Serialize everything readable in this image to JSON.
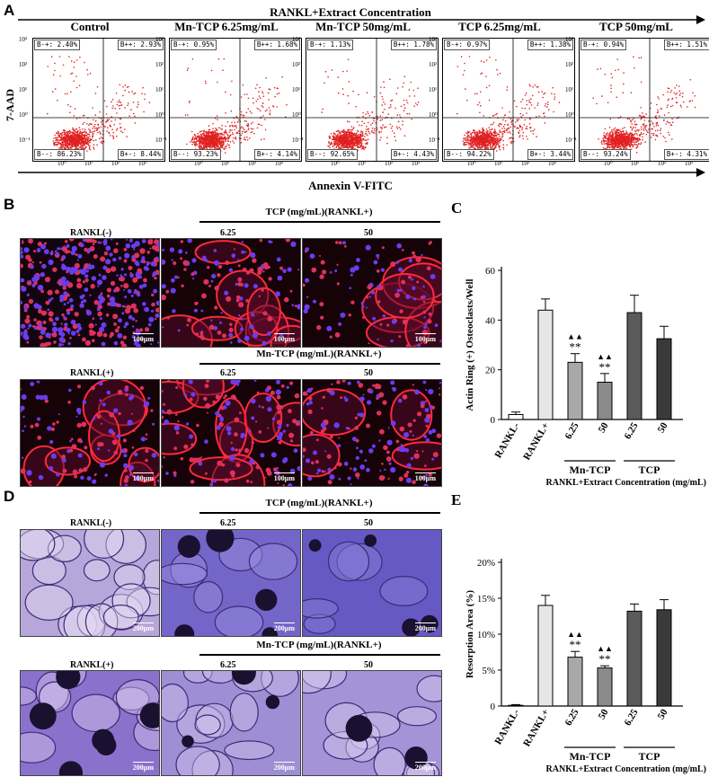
{
  "panel_a": {
    "letter": "A",
    "top_arrow_label": "RANKL+Extract Concentration",
    "bottom_arrow_label": "Annexin V-FITC",
    "y_axis_label": "7-AAD",
    "plots": [
      {
        "title": "Control",
        "ul": "B-+: 2.40%",
        "ur": "B++: 2.93%",
        "ll": "B--: 86.23%",
        "lr": "B+-: 8.44%"
      },
      {
        "title": "Mn-TCP 6.25mg/mL",
        "ul": "B-+: 0.95%",
        "ur": "B++: 1.68%",
        "ll": "B--: 93.23%",
        "lr": "B+-: 4.14%"
      },
      {
        "title": "Mn-TCP 50mg/mL",
        "ul": "B-+: 1.13%",
        "ur": "B++: 1.78%",
        "ll": "B--: 92.65%",
        "lr": "B+-: 4.43%"
      },
      {
        "title": "TCP 6.25mg/mL",
        "ul": "B-+: 0.97%",
        "ur": "B++: 1.38%",
        "ll": "B--: 94.22%",
        "lr": "B+-: 3.44%"
      },
      {
        "title": "TCP 50mg/mL",
        "ul": "B-+: 0.94%",
        "ur": "B++: 1.51%",
        "ll": "B--: 93.24%",
        "lr": "B+-: 4.31%"
      }
    ],
    "y_ticks": [
      "10³",
      "10²",
      "10¹",
      "10⁰",
      "10⁻¹"
    ],
    "x_ticks": [
      "10⁰",
      "10¹",
      "10²",
      "10³"
    ],
    "dot_color": "#e02020"
  },
  "panel_b": {
    "letter": "B",
    "top_header": "TCP (mg/mL)(RANKL+)",
    "bottom_header": "Mn-TCP (mg/mL)(RANKL+)",
    "rankl_neg": "RANKL(-)",
    "rankl_pos": "RANKL(+)",
    "conc_low": "6.25",
    "conc_high": "50",
    "scale": "100μm"
  },
  "panel_d": {
    "letter": "D",
    "top_header": "TCP (mg/mL)(RANKL+)",
    "bottom_header": "Mn-TCP (mg/mL)(RANKL+)",
    "rankl_neg": "RANKL(-)",
    "rankl_pos": "RANKL(+)",
    "conc_low": "6.25",
    "conc_high": "50",
    "scale": "200μm"
  },
  "chart_data": [
    {
      "type": "bar",
      "letter": "C",
      "categories": [
        "RANKL-",
        "RANKL+",
        "6.25",
        "50",
        "6.25",
        "50"
      ],
      "values": [
        2,
        44,
        23,
        15,
        43,
        32.5
      ],
      "errors": [
        1,
        4.5,
        3.5,
        3.5,
        7,
        5
      ],
      "colors": [
        "#ffffff",
        "#e6e6e6",
        "#a8a8a8",
        "#8a8a8a",
        "#5a5a5a",
        "#3a3a3a"
      ],
      "significance": [
        "",
        "",
        "▲▲\n**",
        "▲▲\n**",
        "",
        ""
      ],
      "ylabel": "Actin Ring (+) Osteoclasts/Well",
      "ylim": [
        0,
        60
      ],
      "yticks": [
        "0",
        "20",
        "40",
        "60"
      ],
      "groups": [
        "Mn-TCP",
        "TCP"
      ],
      "xlabel": "RANKL+Extract Concentration (mg/mL)"
    },
    {
      "type": "bar",
      "letter": "E",
      "categories": [
        "RANKL-",
        "RANKL+",
        "6.25",
        "50",
        "6.25",
        "50"
      ],
      "values": [
        0.1,
        14,
        6.8,
        5.3,
        13.2,
        13.4
      ],
      "errors": [
        0.1,
        1.4,
        0.8,
        0.3,
        1.0,
        1.4
      ],
      "colors": [
        "#ffffff",
        "#e6e6e6",
        "#a8a8a8",
        "#8a8a8a",
        "#5a5a5a",
        "#3a3a3a"
      ],
      "significance": [
        "",
        "",
        "▲▲\n**",
        "▲▲\n**",
        "",
        ""
      ],
      "ylabel": "Resorption Area (%)",
      "ylim": [
        0,
        20
      ],
      "yticks": [
        "0",
        "5%",
        "10%",
        "15%",
        "20%"
      ],
      "groups": [
        "Mn-TCP",
        "TCP"
      ],
      "xlabel": "RANKL+Extract Concentration (mg/mL)"
    }
  ]
}
